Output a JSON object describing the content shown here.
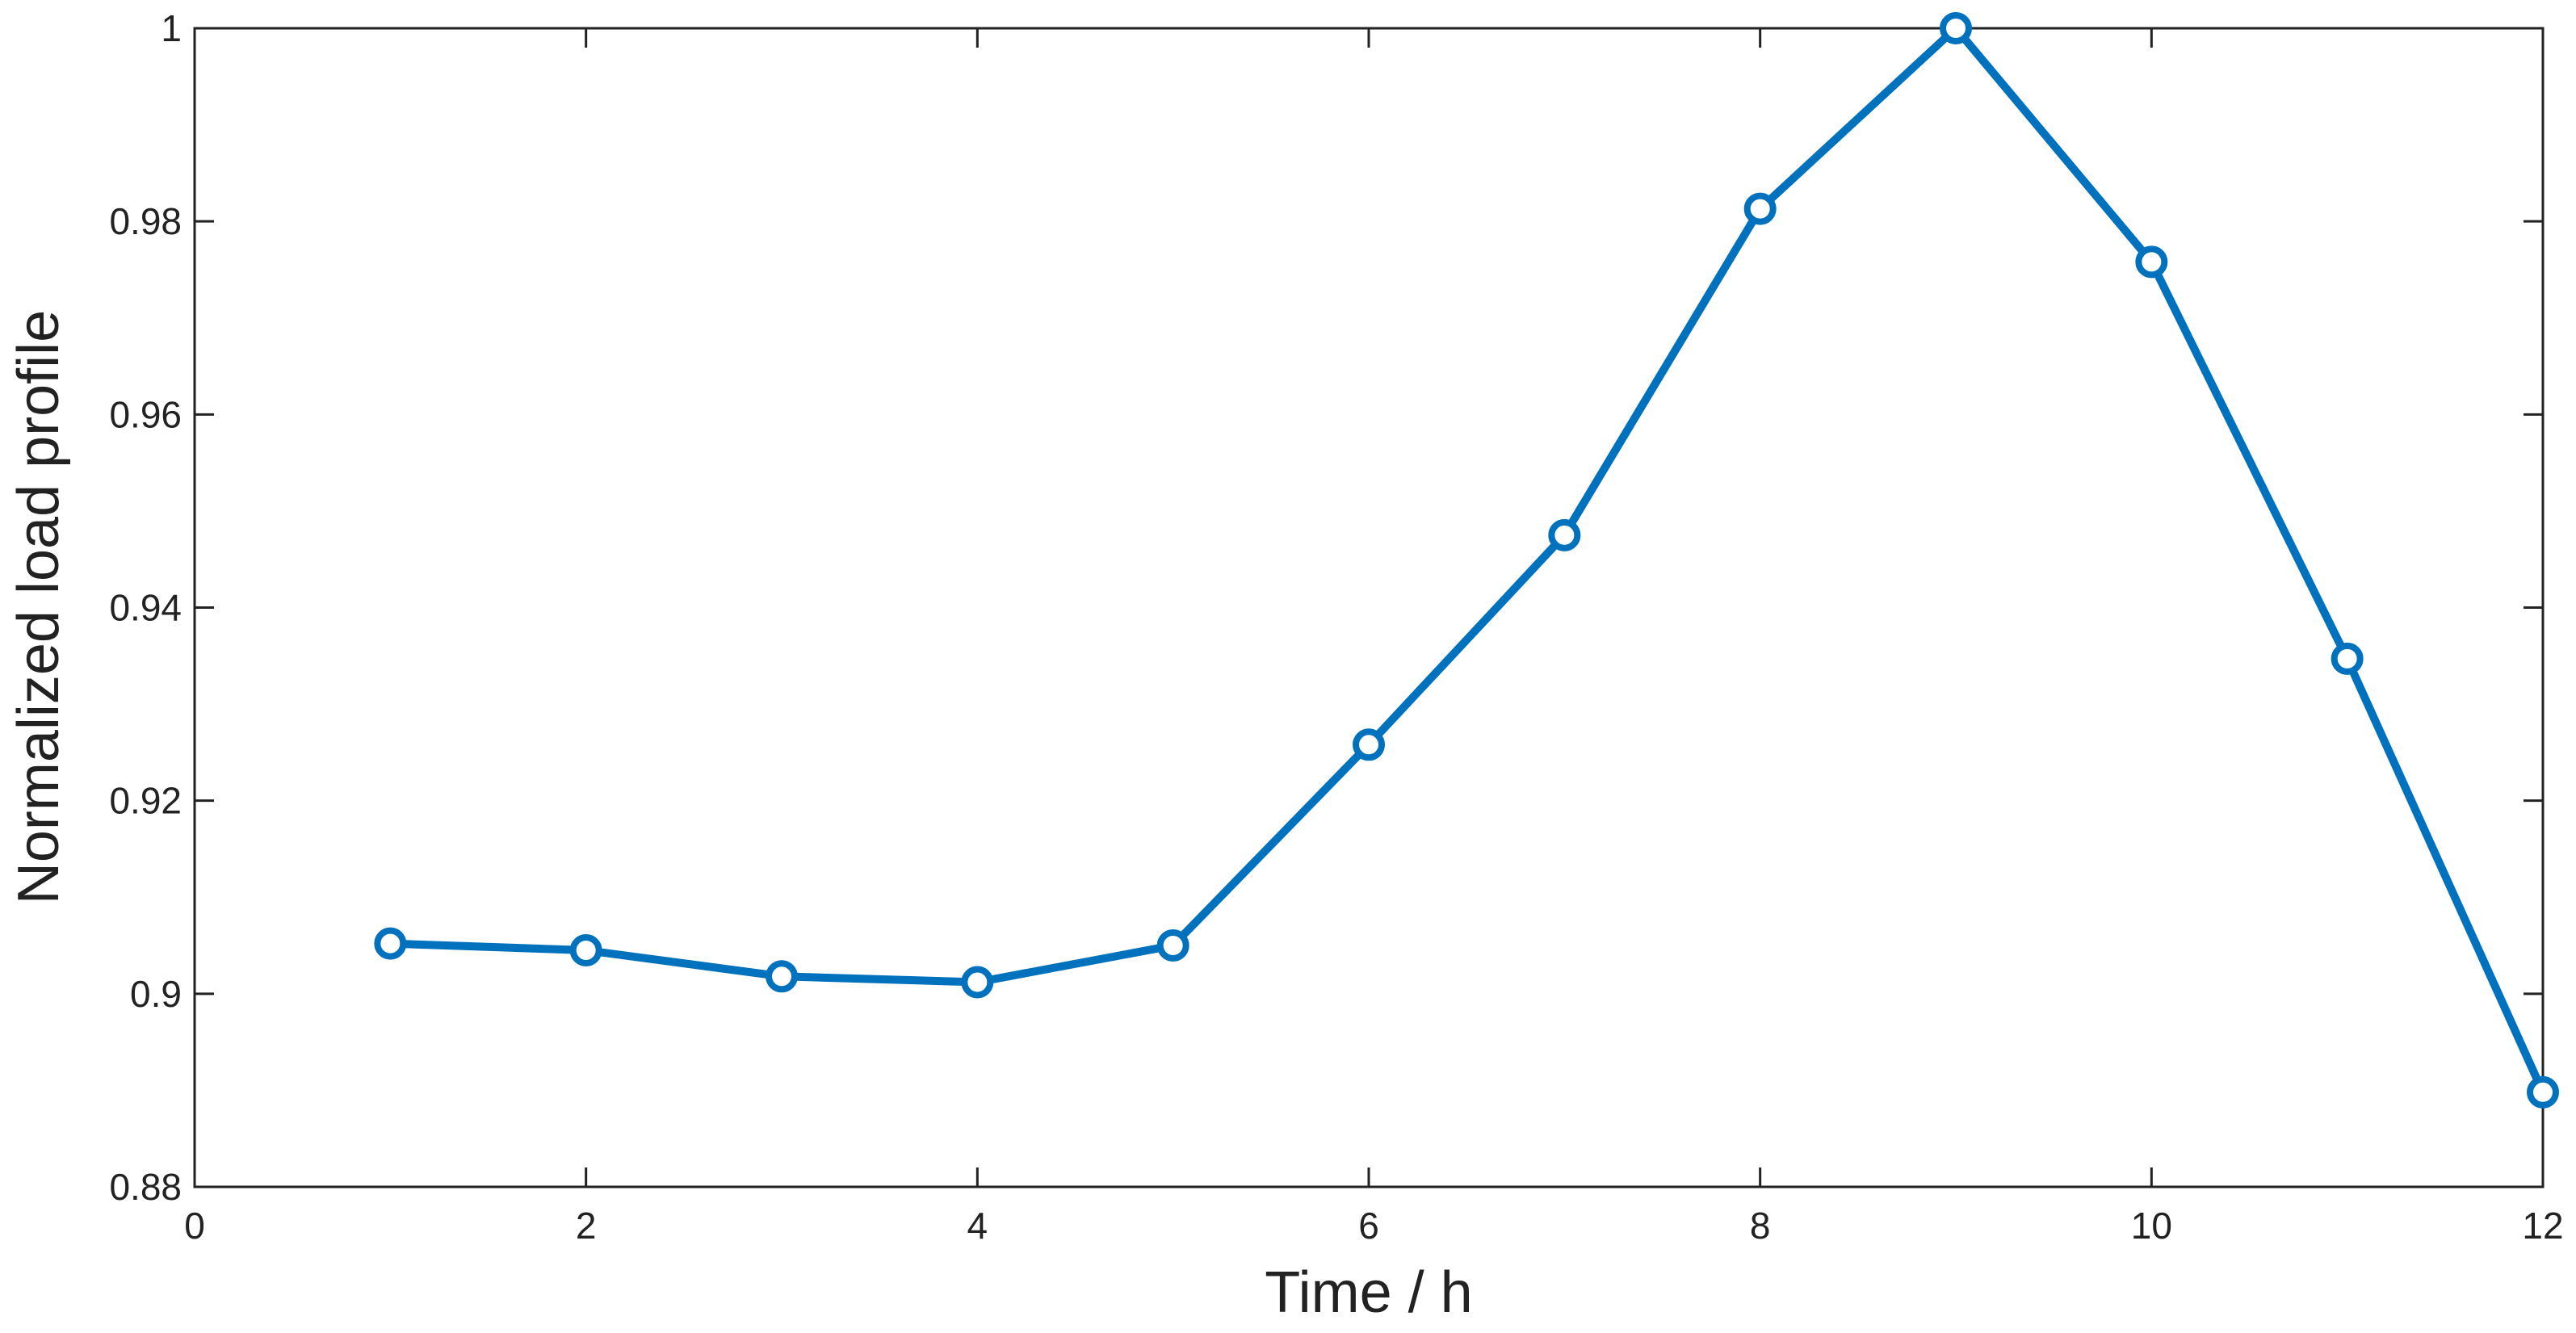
{
  "chart_data": {
    "type": "line",
    "x_label": "Time / h",
    "y_label": "Normalized load profile",
    "x": [
      1,
      2,
      3,
      4,
      5,
      6,
      7,
      8,
      9,
      10,
      11,
      12
    ],
    "series": [
      {
        "color": "#0072bd",
        "values": [
          0.9052,
          0.9045,
          0.9018,
          0.9012,
          0.905,
          0.9258,
          0.9475,
          0.9813,
          1.0,
          0.9758,
          0.9347,
          0.8898
        ]
      }
    ],
    "xlim": [
      0,
      12
    ],
    "xticks": [
      0,
      2,
      4,
      6,
      8,
      10,
      12
    ],
    "ylim": [
      0.88,
      1
    ],
    "yticks": [
      0.88,
      0.9,
      0.92,
      0.94,
      0.96,
      0.98,
      1
    ],
    "grid": false
  }
}
